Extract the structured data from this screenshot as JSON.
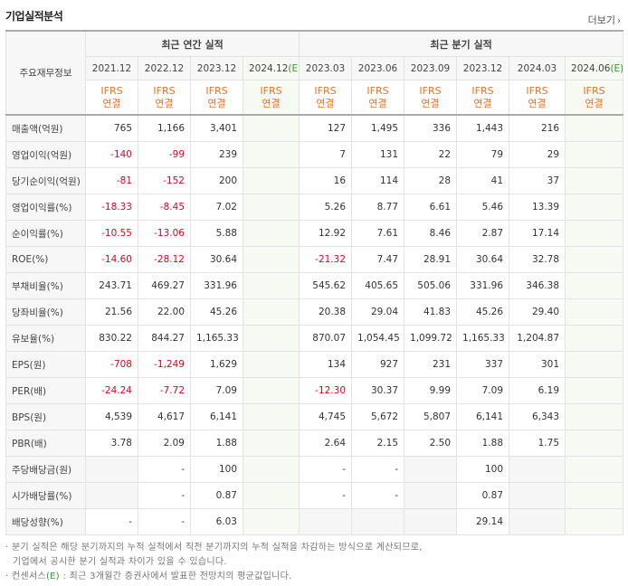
{
  "header": {
    "title": "기업실적분석",
    "more_label": "더보기",
    "more_arrow": "›"
  },
  "table": {
    "row_label_header": "주요재무정보",
    "annual_group": "최근 연간 실적",
    "quarter_group": "최근 분기 실적",
    "annual_periods": [
      "2021.12",
      "2022.12",
      "2023.12",
      "2024.12"
    ],
    "quarter_periods": [
      "2023.03",
      "2023.06",
      "2023.09",
      "2023.12",
      "2024.03",
      "2024.06"
    ],
    "estimate_suffix": "(E)",
    "ifrs_top": "IFRS",
    "ifrs_bottom": "연결",
    "rows": [
      {
        "label": "매출액(억원)",
        "annual": [
          "765",
          "1,166",
          "3,401",
          ""
        ],
        "quarter": [
          "127",
          "1,495",
          "336",
          "1,443",
          "216",
          ""
        ]
      },
      {
        "label": "영업이익(억원)",
        "annual": [
          "-140",
          "-99",
          "239",
          ""
        ],
        "quarter": [
          "7",
          "131",
          "22",
          "79",
          "29",
          ""
        ]
      },
      {
        "label": "당기순이익(억원)",
        "annual": [
          "-81",
          "-152",
          "200",
          ""
        ],
        "quarter": [
          "16",
          "114",
          "28",
          "41",
          "37",
          ""
        ]
      },
      {
        "label": "영업이익률(%)",
        "annual": [
          "-18.33",
          "-8.45",
          "7.02",
          ""
        ],
        "quarter": [
          "5.26",
          "8.77",
          "6.61",
          "5.46",
          "13.39",
          ""
        ]
      },
      {
        "label": "순이익률(%)",
        "annual": [
          "-10.55",
          "-13.06",
          "5.88",
          ""
        ],
        "quarter": [
          "12.92",
          "7.61",
          "8.46",
          "2.87",
          "17.14",
          ""
        ]
      },
      {
        "label": "ROE(%)",
        "annual": [
          "-14.60",
          "-28.12",
          "30.64",
          ""
        ],
        "quarter": [
          "-21.32",
          "7.47",
          "28.91",
          "30.64",
          "32.78",
          ""
        ]
      },
      {
        "label": "부채비율(%)",
        "annual": [
          "243.71",
          "469.27",
          "331.96",
          ""
        ],
        "quarter": [
          "545.62",
          "405.65",
          "505.06",
          "331.96",
          "346.38",
          ""
        ]
      },
      {
        "label": "당좌비율(%)",
        "annual": [
          "21.56",
          "22.00",
          "45.26",
          ""
        ],
        "quarter": [
          "20.38",
          "29.04",
          "41.83",
          "45.26",
          "29.40",
          ""
        ]
      },
      {
        "label": "유보율(%)",
        "annual": [
          "830.22",
          "844.27",
          "1,165.33",
          ""
        ],
        "quarter": [
          "870.07",
          "1,054.45",
          "1,099.72",
          "1,165.33",
          "1,204.87",
          ""
        ]
      },
      {
        "label": "EPS(원)",
        "annual": [
          "-708",
          "-1,249",
          "1,629",
          ""
        ],
        "quarter": [
          "134",
          "927",
          "231",
          "337",
          "301",
          ""
        ]
      },
      {
        "label": "PER(배)",
        "annual": [
          "-24.24",
          "-7.72",
          "7.09",
          ""
        ],
        "quarter": [
          "-12.30",
          "30.37",
          "9.99",
          "7.09",
          "6.19",
          ""
        ]
      },
      {
        "label": "BPS(원)",
        "annual": [
          "4,539",
          "4,617",
          "6,141",
          ""
        ],
        "quarter": [
          "4,745",
          "5,672",
          "5,807",
          "6,141",
          "6,343",
          ""
        ]
      },
      {
        "label": "PBR(배)",
        "annual": [
          "3.78",
          "2.09",
          "1.88",
          ""
        ],
        "quarter": [
          "2.64",
          "2.15",
          "2.50",
          "1.88",
          "1.75",
          ""
        ]
      },
      {
        "label": "주당배당금(원)",
        "annual": [
          "",
          "-",
          "100",
          ""
        ],
        "quarter": [
          "-",
          "-",
          "",
          "100",
          "",
          ""
        ]
      },
      {
        "label": "시가배당률(%)",
        "annual": [
          "",
          "-",
          "0.87",
          ""
        ],
        "quarter": [
          "-",
          "-",
          "",
          "0.87",
          "",
          ""
        ]
      },
      {
        "label": "배당성향(%)",
        "annual": [
          "-",
          "-",
          "6.03",
          ""
        ],
        "quarter": [
          "",
          "",
          "",
          "29.14",
          "",
          ""
        ]
      }
    ]
  },
  "notes": {
    "line1": "· 분기 실적은 해당 분기까지의 누적 실적에서 직전 분기까지의 누적 실적을 차감하는 방식으로 계산되므로,",
    "line2": "  기업에서 공시한 분기 실적과 차이가 있을 수 있습니다.",
    "line3_a": "· 컨센서스",
    "line3_e": "(E)",
    "line3_b": " : 최근 3개월간 증권사에서 발표한 전망치의 평균값입니다."
  },
  "colors": {
    "negative": "#e8001c",
    "ifrs": "#f26f21",
    "estimate_mark": "#2c9c2c",
    "estimate_bg": "#f6faf3",
    "header_bg": "#f7f7f7"
  }
}
